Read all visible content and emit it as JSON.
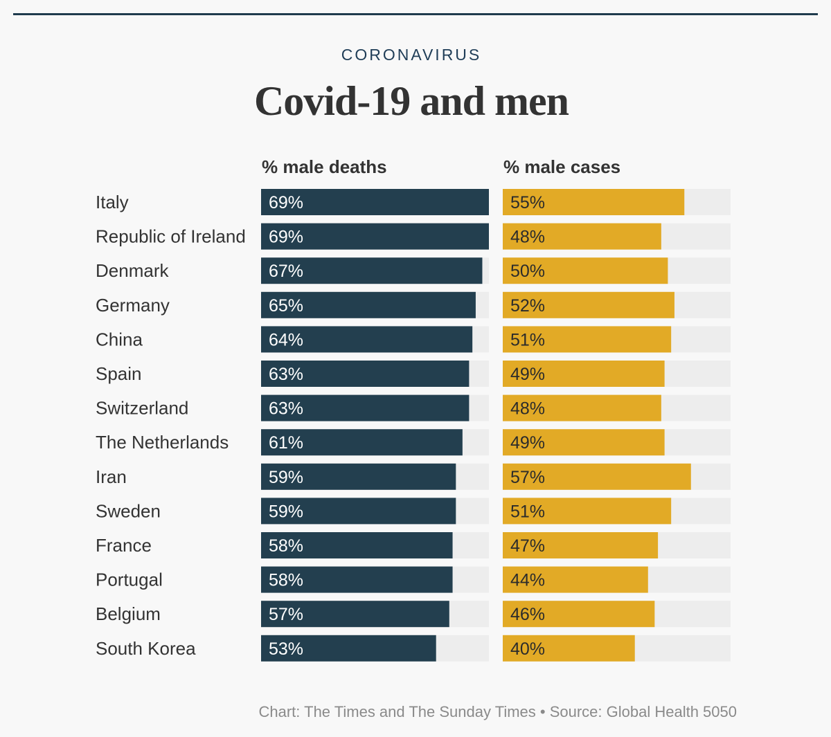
{
  "kicker": "CORONAVIRUS",
  "footer": "Chart: The Times and The Sunday Times • Source: Global Health 5050",
  "colors": {
    "deaths": "#233f4f",
    "cases": "#e2aa26",
    "track": "#ededed",
    "deaths_label": "#ffffff",
    "cases_label": "#2b2b2b"
  },
  "chart_data": {
    "type": "bar",
    "orientation": "horizontal",
    "title": "Covid-19 and men",
    "xlim": [
      0,
      69
    ],
    "grid": false,
    "categories": [
      "Italy",
      "Republic of Ireland",
      "Denmark",
      "Germany",
      "China",
      "Spain",
      "Switzerland",
      "The Netherlands",
      "Iran",
      "Sweden",
      "France",
      "Portugal",
      "Belgium",
      "South Korea"
    ],
    "series": [
      {
        "name": "% male deaths",
        "values": [
          69,
          69,
          67,
          65,
          64,
          63,
          63,
          61,
          59,
          59,
          58,
          58,
          57,
          53
        ],
        "labels": [
          "69%",
          "69%",
          "67%",
          "65%",
          "64%",
          "63%",
          "63%",
          "61%",
          "59%",
          "59%",
          "58%",
          "58%",
          "57%",
          "53%"
        ]
      },
      {
        "name": "% male cases",
        "values": [
          55,
          48,
          50,
          52,
          51,
          49,
          48,
          49,
          57,
          51,
          47,
          44,
          46,
          40
        ],
        "labels": [
          "55%",
          "48%",
          "50%",
          "52%",
          "51%",
          "49%",
          "48%",
          "49%",
          "57%",
          "51%",
          "47%",
          "44%",
          "46%",
          "40%"
        ]
      }
    ]
  }
}
